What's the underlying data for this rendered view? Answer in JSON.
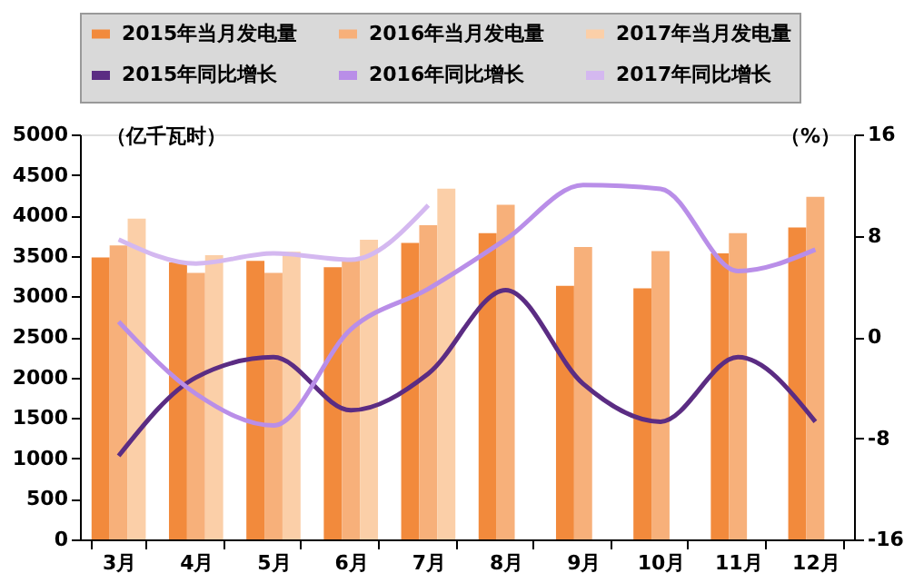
{
  "chart_data": {
    "type": "bar",
    "ylabel": "（亿千瓦时）",
    "y2label": "（%）",
    "categories": [
      "3月",
      "4月",
      "5月",
      "6月",
      "7月",
      "8月",
      "9月",
      "10月",
      "11月",
      "12月"
    ],
    "series": [
      {
        "name": "2015年当月发电量",
        "color": "#f28a3c",
        "values": [
          3480,
          3420,
          3440,
          3360,
          3660,
          3780,
          3130,
          3100,
          3530,
          3850
        ]
      },
      {
        "name": "2016年当月发电量",
        "color": "#f7b07a",
        "values": [
          3630,
          3290,
          3290,
          3470,
          3880,
          4130,
          3610,
          3560,
          3780,
          4230
        ]
      },
      {
        "name": "2017年当月发电量",
        "color": "#fbcfa8",
        "values": [
          3960,
          3510,
          3550,
          3700,
          4330,
          null,
          null,
          null,
          null,
          null
        ]
      },
      {
        "name": "2015年同比增长",
        "type": "line",
        "axis": "y2",
        "color": "#5b2c83",
        "values": [
          -9.4,
          -3.2,
          -1.6,
          -5.8,
          -2.9,
          3.7,
          -3.7,
          -6.7,
          -1.6,
          -6.7
        ]
      },
      {
        "name": "2016年同比增长",
        "type": "line",
        "axis": "y2",
        "color": "#b98ee8",
        "values": [
          1.2,
          -4.5,
          -7.0,
          0.6,
          3.8,
          7.7,
          12.0,
          11.7,
          5.2,
          6.9
        ]
      },
      {
        "name": "2017年同比增长",
        "type": "line",
        "axis": "y2",
        "color": "#d4b8f0",
        "values": [
          7.7,
          5.8,
          6.6,
          6.1,
          10.4,
          null,
          null,
          null,
          null,
          null
        ]
      }
    ],
    "ylim": [
      0,
      5000
    ],
    "yticks": [
      0,
      500,
      1000,
      1500,
      2000,
      2500,
      3000,
      3500,
      4000,
      4500,
      5000
    ],
    "y2lim": [
      -16,
      16
    ],
    "y2ticks": [
      -16,
      -8,
      0,
      8,
      16
    ],
    "grid": false,
    "legend": "top"
  }
}
